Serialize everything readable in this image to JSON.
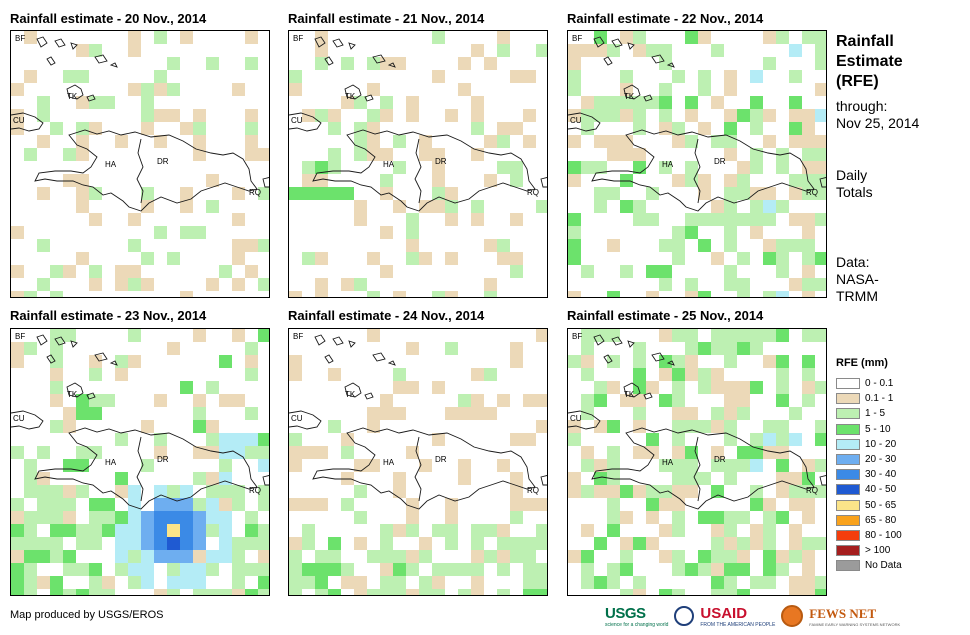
{
  "panels": [
    {
      "title": "Rainfall estimate - 20 Nov., 2014",
      "day": 20
    },
    {
      "title": "Rainfall estimate - 21 Nov., 2014",
      "day": 21
    },
    {
      "title": "Rainfall estimate - 22 Nov., 2014",
      "day": 22
    },
    {
      "title": "Rainfall estimate - 23 Nov., 2014",
      "day": 23
    },
    {
      "title": "Rainfall estimate - 24 Nov., 2014",
      "day": 24
    },
    {
      "title": "Rainfall estimate - 25 Nov., 2014",
      "day": 25
    }
  ],
  "map_labels": {
    "bf": "BF",
    "tk": "TK",
    "cu": "CU",
    "ha": "HA",
    "dr": "DR",
    "rq": "RQ"
  },
  "info": {
    "title_line1": "Rainfall",
    "title_line2": "Estimate",
    "title_line3": "(RFE)",
    "through": "through:",
    "date": "Nov 25, 2014",
    "daily_line1": "Daily",
    "daily_line2": "Totals",
    "data_line1": "Data:",
    "data_line2": "NASA-",
    "data_line3": "TRMM"
  },
  "legend": {
    "title": "RFE (mm)",
    "items": [
      {
        "label": "0 - 0.1",
        "color": "#ffffff"
      },
      {
        "label": "0.1 - 1",
        "color": "#ecd9b8"
      },
      {
        "label": "1 - 5",
        "color": "#bdf0b2"
      },
      {
        "label": "5 - 10",
        "color": "#6ce26c"
      },
      {
        "label": "10 - 20",
        "color": "#b4ecf6"
      },
      {
        "label": "20 - 30",
        "color": "#6eaef0"
      },
      {
        "label": "30 - 40",
        "color": "#3b8ae6"
      },
      {
        "label": "40 - 50",
        "color": "#1f5ad2"
      },
      {
        "label": "50 - 65",
        "color": "#fbe489"
      },
      {
        "label": "65 - 80",
        "color": "#f9a21c"
      },
      {
        "label": "80 - 100",
        "color": "#f43d0c"
      },
      {
        "label": "> 100",
        "color": "#a51e1e"
      },
      {
        "label": "No Data",
        "color": "#9b9b9b"
      }
    ]
  },
  "credit": "Map produced by USGS/EROS",
  "logos": {
    "usgs": "USGS",
    "usgs_tag": "science for a changing world",
    "usaid": "USAID",
    "usaid_tag": "FROM THE AMERICAN PEOPLE",
    "fews": "FEWS NET",
    "fews_tag": "FAMINE EARLY WARNING SYSTEMS NETWORK"
  }
}
